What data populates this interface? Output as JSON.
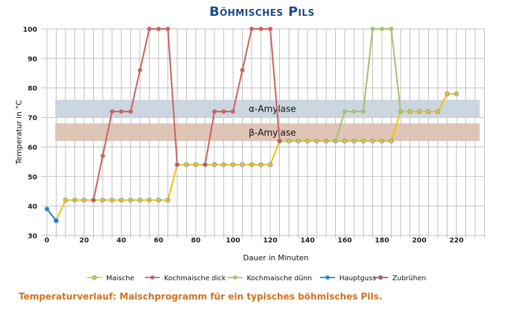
{
  "title": "Böhmisches Pils",
  "caption": "Temperaturverlauf: Maischprogramm für ein typisches böhmisches Pils.",
  "chart_data": {
    "type": "line",
    "title": "Böhmisches Pils",
    "xlabel": "Dauer in Minuten",
    "ylabel": "Temperatur in °C",
    "xlim": [
      0,
      235
    ],
    "ylim": [
      30,
      100
    ],
    "xticks": [
      0,
      20,
      40,
      60,
      80,
      100,
      120,
      140,
      160,
      180,
      200,
      220
    ],
    "yticks": [
      30,
      40,
      50,
      60,
      70,
      80,
      90,
      100
    ],
    "grid": true,
    "legend_position": "bottom",
    "bands": [
      {
        "label": "α-Amylase",
        "y": [
          70,
          76
        ],
        "x": [
          4.5,
          232.5
        ],
        "color": "#c9d4df"
      },
      {
        "label": "β-Amylase",
        "y": [
          62,
          68
        ],
        "x": [
          4.5,
          232.5
        ],
        "color": "#dcc2b2"
      }
    ],
    "series": [
      {
        "name": "Maische",
        "color": "#f7c300",
        "marker": "#f7c300",
        "ring": "#7fa4c8",
        "points": [
          [
            5,
            35
          ],
          [
            10,
            42
          ],
          [
            15,
            42
          ],
          [
            20,
            42
          ],
          [
            25,
            42
          ],
          [
            30,
            42
          ],
          [
            35,
            42
          ],
          [
            40,
            42
          ],
          [
            45,
            42
          ],
          [
            50,
            42
          ],
          [
            55,
            42
          ],
          [
            60,
            42
          ],
          [
            65,
            42
          ],
          [
            70,
            54
          ],
          [
            75,
            54
          ],
          [
            80,
            54
          ],
          [
            85,
            54
          ],
          [
            90,
            54
          ],
          [
            95,
            54
          ],
          [
            100,
            54
          ],
          [
            105,
            54
          ],
          [
            110,
            54
          ],
          [
            115,
            54
          ],
          [
            120,
            54
          ],
          [
            125,
            62
          ],
          [
            130,
            62
          ],
          [
            135,
            62
          ],
          [
            140,
            62
          ],
          [
            145,
            62
          ],
          [
            150,
            62
          ],
          [
            155,
            62
          ],
          [
            160,
            62
          ],
          [
            165,
            62
          ],
          [
            170,
            62
          ],
          [
            175,
            62
          ],
          [
            180,
            62
          ],
          [
            185,
            62
          ],
          [
            190,
            72
          ],
          [
            195,
            72
          ],
          [
            200,
            72
          ],
          [
            205,
            72
          ],
          [
            210,
            72
          ],
          [
            215,
            78
          ],
          [
            220,
            78
          ]
        ]
      },
      {
        "name": "Kochmaische dick",
        "color": "#cd6460",
        "marker": "#cd6460",
        "segments": [
          [
            [
              25,
              42
            ],
            [
              30,
              57
            ],
            [
              35,
              72
            ],
            [
              40,
              72
            ],
            [
              45,
              72
            ],
            [
              50,
              86
            ],
            [
              55,
              100
            ],
            [
              60,
              100
            ],
            [
              65,
              100
            ],
            [
              70,
              54
            ]
          ],
          [
            [
              85,
              54
            ],
            [
              90,
              72
            ],
            [
              95,
              72
            ],
            [
              100,
              72
            ],
            [
              105,
              86
            ],
            [
              110,
              100
            ],
            [
              115,
              100
            ],
            [
              120,
              100
            ],
            [
              125,
              62
            ]
          ]
        ]
      },
      {
        "name": "Kochmaische dünn",
        "color": "#a8c070",
        "marker": "#a8c070",
        "points": [
          [
            155,
            62
          ],
          [
            160,
            72
          ],
          [
            165,
            72
          ],
          [
            170,
            72
          ],
          [
            175,
            100
          ],
          [
            180,
            100
          ],
          [
            185,
            100
          ],
          [
            190,
            72
          ]
        ]
      },
      {
        "name": "Hauptguss",
        "color": "#2683c6",
        "marker": "#2683c6",
        "points": [
          [
            0,
            39
          ],
          [
            5,
            35
          ]
        ]
      },
      {
        "name": "Zubrühen",
        "color": "#e0402a",
        "marker": "#d9463a",
        "ring": "#7fa4c8",
        "points": [
          [
            25,
            42
          ],
          [
            70,
            54
          ],
          [
            85,
            54
          ],
          [
            125,
            62
          ]
        ]
      }
    ]
  }
}
